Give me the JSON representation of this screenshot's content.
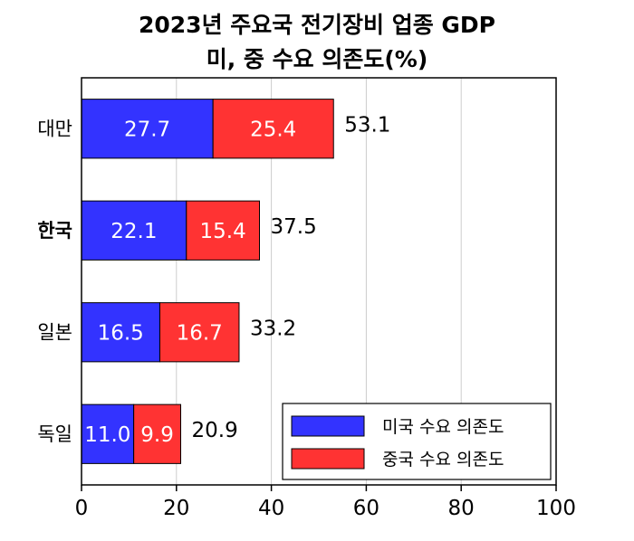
{
  "chart_data": {
    "type": "bar",
    "orientation": "horizontal",
    "stacked": true,
    "title": [
      "2023년 주요국 전기장비 업종 GDP",
      "미, 중 수요 의존도(%)"
    ],
    "categories": [
      "대만",
      "한국",
      "일본",
      "독일"
    ],
    "highlight_category": "한국",
    "highlight_color": "#e02020",
    "series": [
      {
        "name": "미국 수요 의존도",
        "color": "#3333ff",
        "values": [
          27.7,
          22.1,
          16.5,
          11.0
        ],
        "labels": [
          "27.7",
          "22.1",
          "16.5",
          "11.0"
        ]
      },
      {
        "name": "중국 수요 의존도",
        "color": "#ff3333",
        "values": [
          25.4,
          15.4,
          16.7,
          9.9
        ],
        "labels": [
          "25.4",
          "15.4",
          "16.7",
          "9.9"
        ]
      }
    ],
    "totals": [
      "53.1",
      "37.5",
      "33.2",
      "20.9"
    ],
    "xlim": [
      0,
      100
    ],
    "xticks": [
      0,
      20,
      40,
      60,
      80,
      100
    ],
    "xtick_labels": [
      "0",
      "20",
      "40",
      "60",
      "80",
      "100"
    ],
    "grid": "vertical",
    "legend_position": "bottom-right"
  }
}
